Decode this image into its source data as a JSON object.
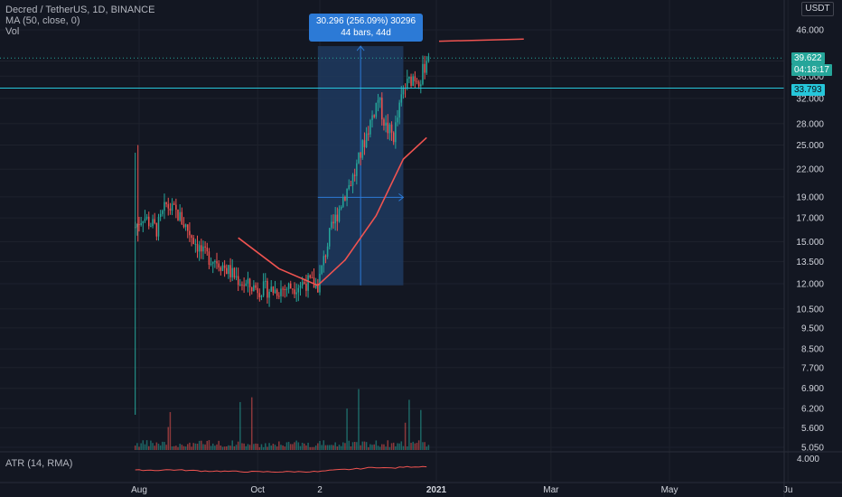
{
  "legend": {
    "symbol_line": "Decred / TetherUS, 1D, BINANCE",
    "ma_line": "MA (50, close, 0)",
    "vol_line": "Vol"
  },
  "currency_badge": "USDT",
  "measure": {
    "line1": "30.296 (256.09%) 30296",
    "line2": "44 bars, 44d"
  },
  "price_tags": {
    "last": "39.622",
    "countdown": "04:18:17",
    "hline": "33.793"
  },
  "atr_legend": "ATR (14, RMA)",
  "colors": {
    "background": "#131722",
    "up": "#26a69a",
    "down": "#ef5350",
    "ma": "#ef5350",
    "hline": "#26c6da",
    "measure_fill": "#1e3a5f",
    "measure_label": "#2c7ad6"
  },
  "chart_data": {
    "type": "candlestick",
    "y_scale": "log",
    "price_axis_ticks": [
      "46.000",
      "39.000",
      "36.000",
      "32.000",
      "28.000",
      "25.000",
      "22.000",
      "19.000",
      "17.000",
      "15.000",
      "13.500",
      "12.000",
      "10.500",
      "9.500",
      "8.500",
      "7.700",
      "6.900",
      "6.200",
      "5.600",
      "5.050"
    ],
    "price_range": [
      4.9,
      54.0
    ],
    "atr_axis_ticks": [
      "4.000"
    ],
    "x_axis_ticks": [
      "Aug",
      "Oct",
      "2",
      "2021",
      "Mar",
      "May",
      "Ju"
    ],
    "ma_anchors": [
      {
        "date": "2020-09-21",
        "value": 15.3
      },
      {
        "date": "2020-10-12",
        "value": 13.0
      },
      {
        "date": "2020-11-01",
        "value": 11.9
      },
      {
        "date": "2020-11-15",
        "value": 13.6
      },
      {
        "date": "2020-12-01",
        "value": 17.2
      },
      {
        "date": "2020-12-15",
        "value": 23.2
      },
      {
        "date": "2020-12-27",
        "value": 26.0
      }
    ],
    "horizontal_line": 33.793,
    "last_price": 39.622,
    "measure_range": {
      "from": 11.9,
      "to": 42.2,
      "bars": 44,
      "days": 44
    },
    "price_anchors": [
      {
        "date": "2020-07-30",
        "value": 16.2
      },
      {
        "date": "2020-08-03",
        "value": 17.2
      },
      {
        "date": "2020-08-10",
        "value": 16.0
      },
      {
        "date": "2020-08-15",
        "value": 18.2
      },
      {
        "date": "2020-08-21",
        "value": 17.3
      },
      {
        "date": "2020-08-28",
        "value": 15.5
      },
      {
        "date": "2020-09-03",
        "value": 14.0
      },
      {
        "date": "2020-09-10",
        "value": 13.6
      },
      {
        "date": "2020-09-18",
        "value": 12.6
      },
      {
        "date": "2020-09-25",
        "value": 11.9
      },
      {
        "date": "2020-10-02",
        "value": 11.7
      },
      {
        "date": "2020-10-10",
        "value": 11.6
      },
      {
        "date": "2020-10-18",
        "value": 11.8
      },
      {
        "date": "2020-10-26",
        "value": 12.1
      },
      {
        "date": "2020-11-01",
        "value": 11.9
      },
      {
        "date": "2020-11-07",
        "value": 15.5
      },
      {
        "date": "2020-11-14",
        "value": 19.0
      },
      {
        "date": "2020-11-20",
        "value": 21.5
      },
      {
        "date": "2020-11-26",
        "value": 26.5
      },
      {
        "date": "2020-12-02",
        "value": 32.0
      },
      {
        "date": "2020-12-06",
        "value": 27.5
      },
      {
        "date": "2020-12-10",
        "value": 26.2
      },
      {
        "date": "2020-12-15",
        "value": 33.5
      },
      {
        "date": "2020-12-20",
        "value": 36.0
      },
      {
        "date": "2020-12-24",
        "value": 35.5
      },
      {
        "date": "2020-12-28",
        "value": 41.0
      }
    ]
  }
}
